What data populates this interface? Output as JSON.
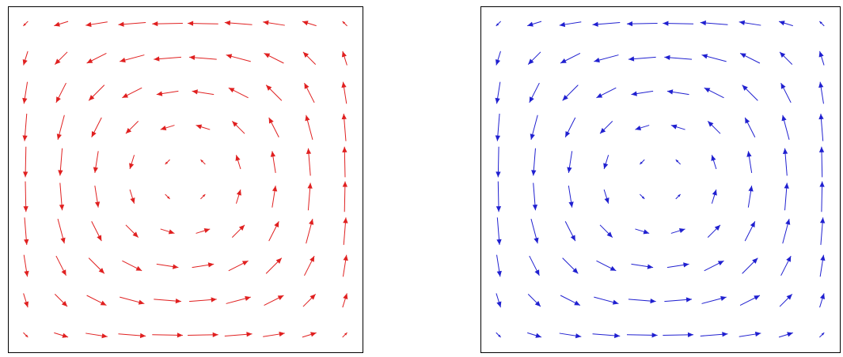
{
  "chart_data": [
    {
      "type": "quiver",
      "color": "#e02020",
      "x": [
        0.05,
        0.15,
        0.25,
        0.35,
        0.45,
        0.55,
        0.65,
        0.75,
        0.85,
        0.95
      ],
      "y": [
        0.05,
        0.15,
        0.25,
        0.35,
        0.45,
        0.55,
        0.65,
        0.75,
        0.85,
        0.95
      ],
      "xlim": [
        0,
        1
      ],
      "ylim": [
        0,
        1
      ],
      "u": [
        [
          0.15,
          0.45,
          0.7,
          0.88,
          0.98,
          0.98,
          0.88,
          0.7,
          0.45,
          0.15
        ],
        [
          0.14,
          0.4,
          0.63,
          0.79,
          0.88,
          0.88,
          0.79,
          0.63,
          0.4,
          0.14
        ],
        [
          0.11,
          0.32,
          0.5,
          0.63,
          0.7,
          0.7,
          0.63,
          0.5,
          0.32,
          0.11
        ],
        [
          0.07,
          0.21,
          0.32,
          0.4,
          0.45,
          0.45,
          0.4,
          0.32,
          0.21,
          0.07
        ],
        [
          0.02,
          0.07,
          0.11,
          0.14,
          0.15,
          0.15,
          0.14,
          0.11,
          0.07,
          0.02
        ],
        [
          -0.02,
          -0.07,
          -0.11,
          -0.14,
          -0.15,
          -0.15,
          -0.14,
          -0.11,
          -0.07,
          -0.02
        ],
        [
          -0.07,
          -0.21,
          -0.32,
          -0.4,
          -0.45,
          -0.45,
          -0.4,
          -0.32,
          -0.21,
          -0.07
        ],
        [
          -0.11,
          -0.32,
          -0.5,
          -0.63,
          -0.7,
          -0.7,
          -0.63,
          -0.5,
          -0.32,
          -0.11
        ],
        [
          -0.14,
          -0.4,
          -0.63,
          -0.79,
          -0.88,
          -0.88,
          -0.79,
          -0.63,
          -0.4,
          -0.14
        ],
        [
          -0.15,
          -0.45,
          -0.7,
          -0.88,
          -0.98,
          -0.98,
          -0.88,
          -0.7,
          -0.45,
          -0.15
        ]
      ],
      "v": [
        [
          -0.15,
          -0.14,
          -0.11,
          -0.07,
          -0.02,
          0.02,
          0.07,
          0.11,
          0.14,
          0.15
        ],
        [
          -0.45,
          -0.4,
          -0.32,
          -0.21,
          -0.07,
          0.07,
          0.21,
          0.32,
          0.4,
          0.45
        ],
        [
          -0.7,
          -0.63,
          -0.5,
          -0.32,
          -0.11,
          0.11,
          0.32,
          0.5,
          0.63,
          0.7
        ],
        [
          -0.88,
          -0.79,
          -0.63,
          -0.4,
          -0.14,
          0.14,
          0.4,
          0.63,
          0.79,
          0.88
        ],
        [
          -0.98,
          -0.88,
          -0.7,
          -0.45,
          -0.15,
          0.15,
          0.45,
          0.7,
          0.88,
          0.98
        ],
        [
          -0.98,
          -0.88,
          -0.7,
          -0.45,
          -0.15,
          0.15,
          0.45,
          0.7,
          0.88,
          0.98
        ],
        [
          -0.88,
          -0.79,
          -0.63,
          -0.4,
          -0.14,
          0.14,
          0.4,
          0.63,
          0.79,
          0.88
        ],
        [
          -0.7,
          -0.63,
          -0.5,
          -0.32,
          -0.11,
          0.11,
          0.32,
          0.5,
          0.63,
          0.7
        ],
        [
          -0.45,
          -0.4,
          -0.32,
          -0.21,
          -0.07,
          0.07,
          0.21,
          0.32,
          0.4,
          0.45
        ],
        [
          -0.15,
          -0.14,
          -0.11,
          -0.07,
          -0.02,
          0.02,
          0.07,
          0.11,
          0.14,
          0.15
        ]
      ]
    },
    {
      "type": "quiver",
      "color": "#2020d0",
      "x": [
        0.05,
        0.15,
        0.25,
        0.35,
        0.45,
        0.55,
        0.65,
        0.75,
        0.85,
        0.95
      ],
      "y": [
        0.05,
        0.15,
        0.25,
        0.35,
        0.45,
        0.55,
        0.65,
        0.75,
        0.85,
        0.95
      ],
      "xlim": [
        0,
        1
      ],
      "ylim": [
        0,
        1
      ],
      "u": [
        [
          0.15,
          0.45,
          0.7,
          0.88,
          0.98,
          0.98,
          0.88,
          0.7,
          0.45,
          0.15
        ],
        [
          0.14,
          0.4,
          0.63,
          0.79,
          0.88,
          0.88,
          0.79,
          0.63,
          0.4,
          0.14
        ],
        [
          0.11,
          0.32,
          0.5,
          0.63,
          0.7,
          0.7,
          0.63,
          0.5,
          0.32,
          0.11
        ],
        [
          0.07,
          0.21,
          0.32,
          0.4,
          0.45,
          0.45,
          0.4,
          0.32,
          0.21,
          0.07
        ],
        [
          0.02,
          0.07,
          0.11,
          0.14,
          0.15,
          0.15,
          0.14,
          0.11,
          0.07,
          0.02
        ],
        [
          -0.02,
          -0.07,
          -0.11,
          -0.14,
          -0.15,
          -0.15,
          -0.14,
          -0.11,
          -0.07,
          -0.02
        ],
        [
          -0.07,
          -0.21,
          -0.32,
          -0.4,
          -0.45,
          -0.45,
          -0.4,
          -0.32,
          -0.21,
          -0.07
        ],
        [
          -0.11,
          -0.32,
          -0.5,
          -0.63,
          -0.7,
          -0.7,
          -0.63,
          -0.5,
          -0.32,
          -0.11
        ],
        [
          -0.14,
          -0.4,
          -0.63,
          -0.79,
          -0.88,
          -0.88,
          -0.79,
          -0.63,
          -0.4,
          -0.14
        ],
        [
          -0.15,
          -0.45,
          -0.7,
          -0.88,
          -0.98,
          -0.98,
          -0.88,
          -0.7,
          -0.45,
          -0.15
        ]
      ],
      "v": [
        [
          -0.15,
          -0.14,
          -0.11,
          -0.07,
          -0.02,
          0.02,
          0.07,
          0.11,
          0.14,
          0.15
        ],
        [
          -0.45,
          -0.4,
          -0.32,
          -0.21,
          -0.07,
          0.07,
          0.21,
          0.32,
          0.4,
          0.45
        ],
        [
          -0.7,
          -0.63,
          -0.5,
          -0.32,
          -0.11,
          0.11,
          0.32,
          0.5,
          0.63,
          0.7
        ],
        [
          -0.88,
          -0.79,
          -0.63,
          -0.4,
          -0.14,
          0.14,
          0.4,
          0.63,
          0.79,
          0.88
        ],
        [
          -0.98,
          -0.88,
          -0.7,
          -0.45,
          -0.15,
          0.15,
          0.45,
          0.7,
          0.88,
          0.98
        ],
        [
          -0.98,
          -0.88,
          -0.7,
          -0.45,
          -0.15,
          0.15,
          0.45,
          0.7,
          0.88,
          0.98
        ],
        [
          -0.88,
          -0.79,
          -0.63,
          -0.4,
          -0.14,
          0.14,
          0.4,
          0.63,
          0.79,
          0.88
        ],
        [
          -0.7,
          -0.63,
          -0.5,
          -0.32,
          -0.11,
          0.11,
          0.32,
          0.5,
          0.63,
          0.7
        ],
        [
          -0.45,
          -0.4,
          -0.32,
          -0.21,
          -0.07,
          0.07,
          0.21,
          0.32,
          0.4,
          0.45
        ],
        [
          -0.15,
          -0.14,
          -0.11,
          -0.07,
          -0.02,
          0.02,
          0.07,
          0.11,
          0.14,
          0.15
        ]
      ]
    }
  ]
}
